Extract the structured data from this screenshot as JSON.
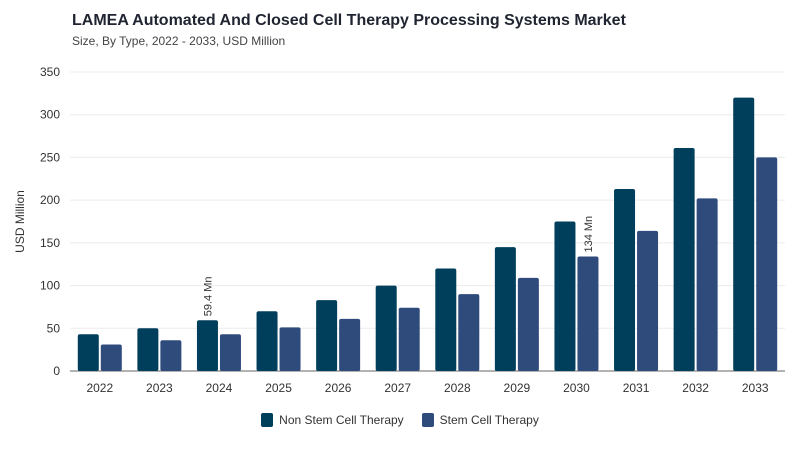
{
  "chart_data": {
    "type": "bar",
    "title": "LAMEA Automated And Closed Cell Therapy Processing Systems Market",
    "subtitle": "Size, By Type, 2022 - 2033, USD Million",
    "xlabel": "",
    "ylabel": "USD Million",
    "ylim": [
      0,
      350
    ],
    "yticks": [
      0,
      50,
      100,
      150,
      200,
      250,
      300,
      350
    ],
    "grid": true,
    "legend_position": "bottom",
    "categories": [
      "2022",
      "2023",
      "2024",
      "2025",
      "2026",
      "2027",
      "2028",
      "2029",
      "2030",
      "2031",
      "2032",
      "2033"
    ],
    "series": [
      {
        "name": "Non Stem Cell Therapy",
        "color": "#003f5c",
        "values": [
          43,
          50,
          59.4,
          70,
          83,
          100,
          120,
          145,
          175,
          213,
          261,
          320
        ]
      },
      {
        "name": "Stem Cell Therapy",
        "color": "#2f4b7c",
        "values": [
          31,
          36,
          43,
          51,
          61,
          74,
          90,
          109,
          134,
          164,
          202,
          250
        ]
      }
    ],
    "annotations": [
      {
        "series": 0,
        "index": 2,
        "text": "59.4 Mn"
      },
      {
        "series": 1,
        "index": 8,
        "text": "134 Mn"
      }
    ]
  }
}
